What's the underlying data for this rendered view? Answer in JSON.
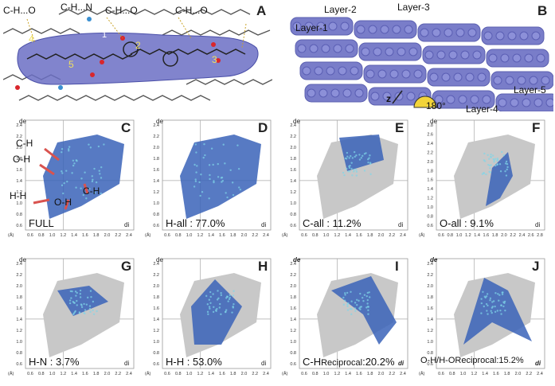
{
  "panel_a": {
    "letter": "A",
    "labels": [
      "C-H...O",
      "C-H...N",
      "C-H...O",
      "C-H...O"
    ],
    "numbers": [
      "1",
      "2",
      "3",
      "4",
      "5"
    ]
  },
  "panel_b": {
    "letter": "B",
    "layers": [
      "Layer-1",
      "Layer-2",
      "Layer-3",
      "Layer-4",
      "Layer-5"
    ],
    "axis": "z",
    "angle": "180°"
  },
  "plots": [
    {
      "letter": "C",
      "label": "FULL",
      "arrows": [
        "C-H",
        "O-H",
        "H-H",
        "O-H",
        "C-H"
      ]
    },
    {
      "letter": "D",
      "label": "H-all : 77.0%"
    },
    {
      "letter": "E",
      "label": "C-all : 11.2%"
    },
    {
      "letter": "F",
      "label": "O-all : 9.1%"
    },
    {
      "letter": "G",
      "label": "H-N : 3.7%"
    },
    {
      "letter": "H",
      "label": "H-H : 53.0%"
    },
    {
      "letter": "I",
      "label_main": "C-H",
      "label_sub": "Reciprocal",
      "label_pct": ":20.2%"
    },
    {
      "letter": "J",
      "label_main": "O-H/H-O",
      "label_sub": "Reciprocal",
      "label_pct": ":15.2%"
    }
  ],
  "axes": {
    "de": "de",
    "di": "di",
    "unit": "(Å)",
    "y_ticks": [
      "2.4",
      "2.2",
      "2.0",
      "1.8",
      "1.6",
      "1.4",
      "1.2",
      "1.0",
      "0.8",
      "0.6"
    ],
    "y_ticks_f": [
      "2.8",
      "2.6",
      "2.4",
      "2.2",
      "2.0",
      "1.8",
      "1.6",
      "1.4",
      "1.2",
      "1.0",
      "0.8",
      "0.6"
    ],
    "x_ticks": [
      "0.6",
      "0.8",
      "1.0",
      "1.2",
      "1.4",
      "1.6",
      "1.8",
      "2.0",
      "2.2",
      "2.4"
    ],
    "x_ticks_f": [
      "0.6",
      "0.8",
      "1.0",
      "1.2",
      "1.4",
      "1.6",
      "1.8",
      "2.0",
      "2.2",
      "2.4",
      "2.6",
      "2.8"
    ]
  },
  "colors": {
    "surface": "#6b6fc4",
    "fingerprint_blue": "#3a63b8",
    "fingerprint_cyan": "#7fd6e8",
    "grey": "#c8c8c8",
    "arrow": "#d9534f"
  }
}
